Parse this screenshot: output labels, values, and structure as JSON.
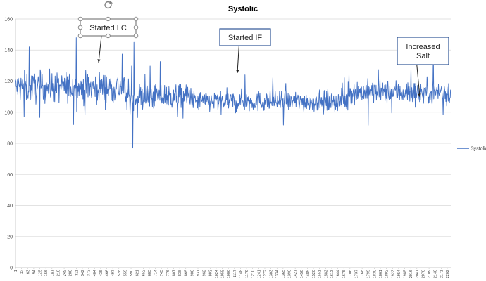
{
  "chart_data": {
    "type": "line",
    "title": "Systolic",
    "xlabel": "",
    "ylabel": "",
    "ylim": [
      0,
      160
    ],
    "y_ticks": [
      0,
      20,
      40,
      60,
      80,
      100,
      120,
      140,
      160
    ],
    "x_range": [
      1,
      2220
    ],
    "x_tick_labels": [
      "1",
      "32",
      "63",
      "94",
      "125",
      "156",
      "187",
      "218",
      "249",
      "280",
      "311",
      "342",
      "373",
      "404",
      "435",
      "466",
      "497",
      "528",
      "559",
      "590",
      "621",
      "652",
      "683",
      "714",
      "745",
      "776",
      "807",
      "838",
      "869",
      "900",
      "931",
      "962",
      "993",
      "1024",
      "1055",
      "1086",
      "1117",
      "1148",
      "1179",
      "1210",
      "1241",
      "1272",
      "1303",
      "1334",
      "1365",
      "1396",
      "1427",
      "1458",
      "1489",
      "1520",
      "1551",
      "1582",
      "1613",
      "1644",
      "1675",
      "1706",
      "1737",
      "1768",
      "1799",
      "1830",
      "1861",
      "1892",
      "1923",
      "1954",
      "1985",
      "2016",
      "2047",
      "2078",
      "2109",
      "2140",
      "2171",
      "2202"
    ],
    "grid": true,
    "legend_position": "right",
    "series": [
      {
        "name": "Systolic",
        "color": "#4472c4",
        "segments": [
          {
            "x_start": 1,
            "x_end": 560,
            "mean": 116,
            "spread": 9
          },
          {
            "x_start": 560,
            "x_end": 900,
            "mean": 110,
            "spread": 8
          },
          {
            "x_start": 900,
            "x_end": 1700,
            "mean": 107,
            "spread": 6
          },
          {
            "x_start": 1700,
            "x_end": 2220,
            "mean": 113,
            "spread": 7
          }
        ],
        "min": 77,
        "max": 148
      }
    ],
    "annotations": [
      {
        "text": "Started LC",
        "x": 420,
        "y": 130
      },
      {
        "text": "Started IF",
        "x": 1130,
        "y": 122
      },
      {
        "text": "Increased Salt",
        "x": 2110,
        "y": 111
      }
    ]
  }
}
